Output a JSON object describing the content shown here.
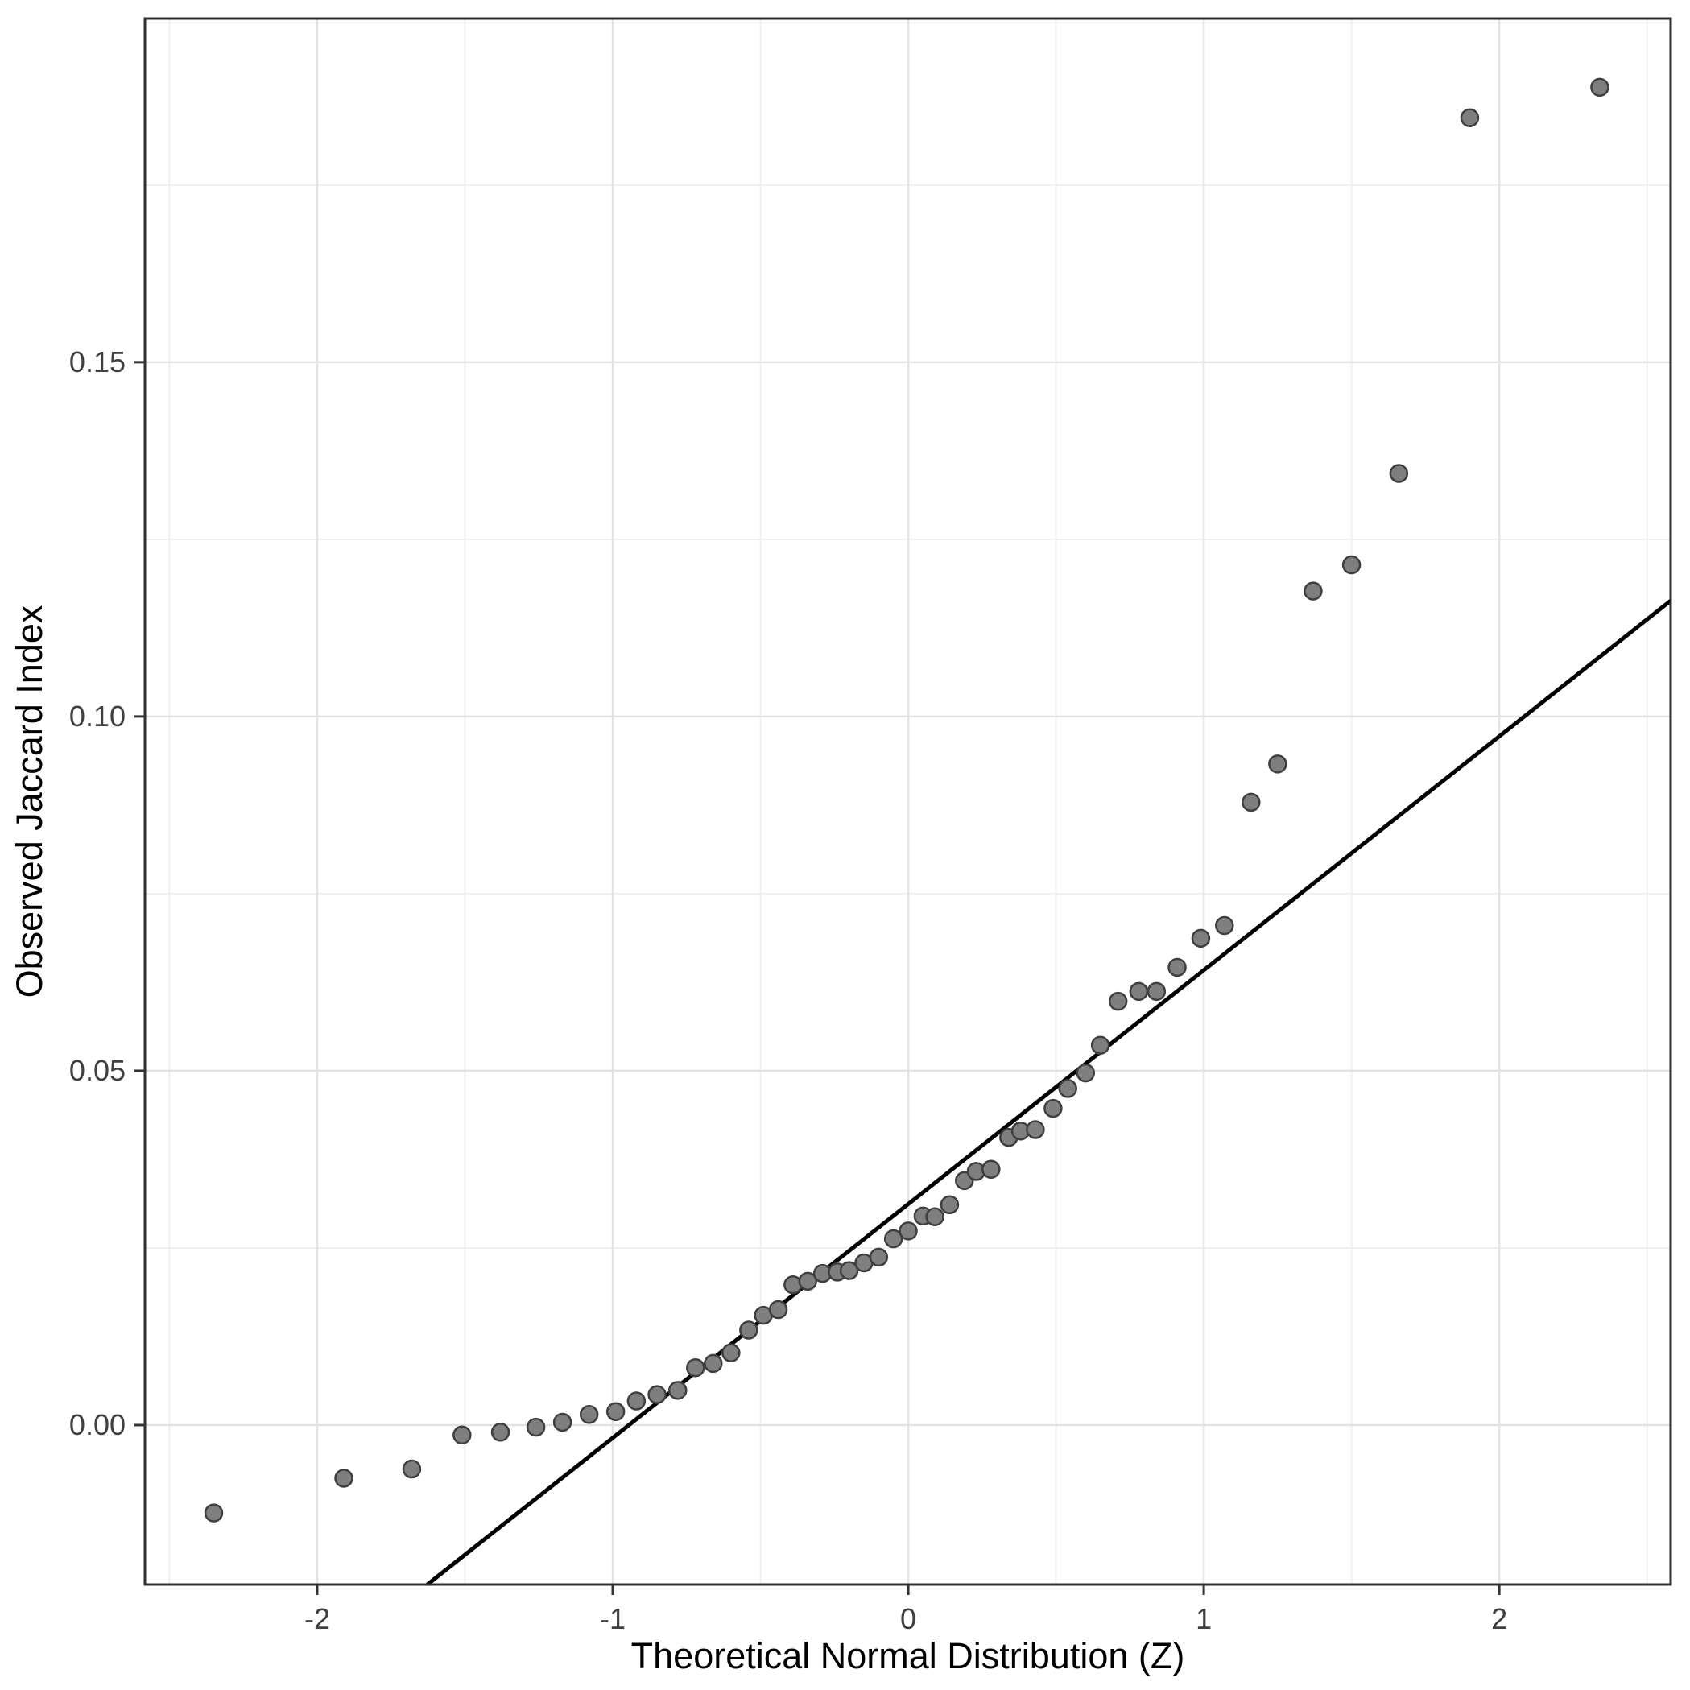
{
  "page": {
    "background": "#ffffff"
  },
  "chart_data": {
    "type": "scatter",
    "title": "",
    "xlabel": "Theoretical Normal Distribution (Z)",
    "ylabel": "Observed Jaccard Index",
    "xlim": [
      -2.583,
      2.58
    ],
    "ylim": [
      -0.0225,
      0.1985
    ],
    "grid": true,
    "legend": "none",
    "x_major_ticks": [
      {
        "value": -2,
        "label": "-2"
      },
      {
        "value": -1,
        "label": "-1"
      },
      {
        "value": 0,
        "label": "0"
      },
      {
        "value": 1,
        "label": "1"
      },
      {
        "value": 2,
        "label": "2"
      }
    ],
    "x_minor_ticks": [
      -2.5,
      -1.5,
      -0.5,
      0.5,
      1.5,
      2.5
    ],
    "y_major_ticks": [
      {
        "value": 0.0,
        "label": "0.00"
      },
      {
        "value": 0.05,
        "label": "0.05"
      },
      {
        "value": 0.1,
        "label": "0.10"
      },
      {
        "value": 0.15,
        "label": "0.15"
      }
    ],
    "y_minor_ticks": [
      0.025,
      0.075,
      0.125,
      0.175
    ],
    "points": [
      [
        -2.35,
        -0.0124
      ],
      [
        -1.91,
        -0.0075
      ],
      [
        -1.68,
        -0.0062
      ],
      [
        -1.51,
        -0.0014
      ],
      [
        -1.38,
        -0.001
      ],
      [
        -1.26,
        -0.0003
      ],
      [
        -1.17,
        0.0004
      ],
      [
        -1.08,
        0.0015
      ],
      [
        -0.99,
        0.0019
      ],
      [
        -0.92,
        0.0034
      ],
      [
        -0.85,
        0.0043
      ],
      [
        -0.78,
        0.0049
      ],
      [
        -0.72,
        0.0081
      ],
      [
        -0.66,
        0.0087
      ],
      [
        -0.6,
        0.0102
      ],
      [
        -0.54,
        0.0134
      ],
      [
        -0.49,
        0.0155
      ],
      [
        -0.44,
        0.0163
      ],
      [
        -0.39,
        0.0198
      ],
      [
        -0.34,
        0.0203
      ],
      [
        -0.29,
        0.0214
      ],
      [
        -0.24,
        0.0216
      ],
      [
        -0.2,
        0.0218
      ],
      [
        -0.15,
        0.0229
      ],
      [
        -0.1,
        0.0237
      ],
      [
        -0.05,
        0.0263
      ],
      [
        0.0,
        0.0274
      ],
      [
        0.05,
        0.0295
      ],
      [
        0.09,
        0.0294
      ],
      [
        0.14,
        0.0311
      ],
      [
        0.19,
        0.0345
      ],
      [
        0.23,
        0.0358
      ],
      [
        0.28,
        0.0361
      ],
      [
        0.34,
        0.0406
      ],
      [
        0.38,
        0.0415
      ],
      [
        0.43,
        0.0417
      ],
      [
        0.49,
        0.0447
      ],
      [
        0.54,
        0.0475
      ],
      [
        0.6,
        0.0497
      ],
      [
        0.65,
        0.0536
      ],
      [
        0.71,
        0.0598
      ],
      [
        0.78,
        0.0612
      ],
      [
        0.84,
        0.0612
      ],
      [
        0.91,
        0.0646
      ],
      [
        0.99,
        0.0687
      ],
      [
        1.07,
        0.0705
      ],
      [
        1.16,
        0.0879
      ],
      [
        1.25,
        0.0933
      ],
      [
        1.37,
        0.1177
      ],
      [
        1.5,
        0.1214
      ],
      [
        1.66,
        0.1343
      ],
      [
        1.9,
        0.1845
      ],
      [
        2.34,
        0.1888
      ]
    ],
    "reference_line": {
      "slope": 0.033,
      "intercept": 0.0312
    },
    "colors": {
      "point_fill": "#7f7f7f",
      "point_stroke": "#3f3f3f",
      "reference_line": "#000000",
      "grid_major": "#e3e3e3",
      "grid_minor": "#f0f0f0",
      "panel_border": "#2f2f2f",
      "panel_background": "#ffffff",
      "tick_mark": "#333333",
      "tick_label": "#404040",
      "axis_title": "#000000"
    }
  }
}
